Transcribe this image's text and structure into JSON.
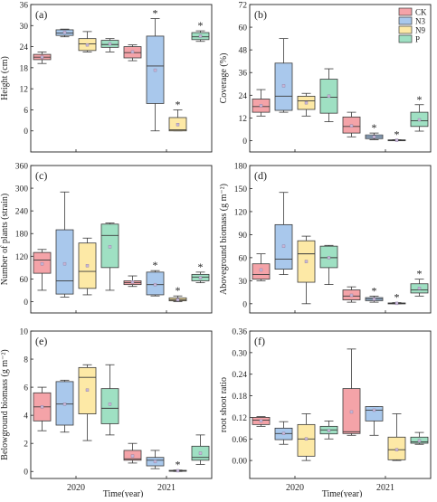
{
  "colors": {
    "CK": "#f4a3a8",
    "N3": "#a9c8ec",
    "N9": "#fde9a6",
    "P": "#9fe0c3",
    "stroke": "#333333",
    "mean": "#c8b8d8"
  },
  "legend": [
    "CK",
    "N3",
    "N9",
    "P"
  ],
  "x_axis": {
    "label": "Time(year)",
    "years": [
      "2020",
      "2021"
    ]
  },
  "chart_data": [
    {
      "type": "box",
      "panel": "(a)",
      "ylabel": "Height (cm)",
      "ylim": [
        -6,
        36
      ],
      "ticks": [
        "0",
        "6",
        "12",
        "18",
        "24",
        "30",
        "36"
      ],
      "tick_values": [
        0,
        6,
        12,
        18,
        24,
        30,
        36
      ],
      "groups": [
        {
          "year": "2020",
          "boxes": [
            {
              "treatment": "CK",
              "min": 19.2,
              "q1": 20.3,
              "median": 21.0,
              "q3": 21.8,
              "max": 22.5,
              "mean": 21.0,
              "sig": ""
            },
            {
              "treatment": "N3",
              "min": 26.8,
              "q1": 27.2,
              "median": 27.9,
              "q3": 28.8,
              "max": 29.0,
              "mean": 28.1,
              "sig": ""
            },
            {
              "treatment": "N9",
              "min": 22.5,
              "q1": 22.9,
              "median": 24.8,
              "q3": 26.3,
              "max": 28.3,
              "mean": 24.5,
              "sig": ""
            },
            {
              "treatment": "P",
              "min": 22.5,
              "q1": 23.8,
              "median": 24.6,
              "q3": 25.8,
              "max": 26.3,
              "mean": 24.8,
              "sig": ""
            }
          ]
        },
        {
          "year": "2021",
          "boxes": [
            {
              "treatment": "CK",
              "min": 20.0,
              "q1": 20.8,
              "median": 22.3,
              "q3": 24.0,
              "max": 24.5,
              "mean": 22.5,
              "sig": ""
            },
            {
              "treatment": "N3",
              "min": 0.0,
              "q1": 7.8,
              "median": 18.5,
              "q3": 27.0,
              "max": 32.0,
              "mean": 17.3,
              "sig": "*"
            },
            {
              "treatment": "N9",
              "min": 0.0,
              "q1": 0.0,
              "median": 0.3,
              "q3": 3.8,
              "max": 6.0,
              "mean": 1.8,
              "sig": "*"
            },
            {
              "treatment": "P",
              "min": 25.5,
              "q1": 26.0,
              "median": 26.8,
              "q3": 28.0,
              "max": 28.5,
              "mean": 27.0,
              "sig": "*"
            }
          ]
        }
      ]
    },
    {
      "type": "box",
      "panel": "(b)",
      "ylabel": "Coverage (%)",
      "ylim": [
        -6,
        72
      ],
      "ticks": [
        "0",
        "12",
        "24",
        "36",
        "48",
        "60",
        "72"
      ],
      "tick_values": [
        0,
        12,
        24,
        36,
        48,
        60,
        72
      ],
      "groups": [
        {
          "year": "2020",
          "boxes": [
            {
              "treatment": "CK",
              "min": 13.0,
              "q1": 15.0,
              "median": 18.0,
              "q3": 22.0,
              "max": 27.0,
              "mean": 18.5,
              "sig": ""
            },
            {
              "treatment": "N3",
              "min": 15.0,
              "q1": 16.0,
              "median": 23.5,
              "q3": 41.0,
              "max": 54.0,
              "mean": 29.0,
              "sig": ""
            },
            {
              "treatment": "N9",
              "min": 13.0,
              "q1": 16.5,
              "median": 21.0,
              "q3": 23.5,
              "max": 25.0,
              "mean": 20.0,
              "sig": ""
            },
            {
              "treatment": "P",
              "min": 10.0,
              "q1": 14.5,
              "median": 23.0,
              "q3": 32.5,
              "max": 38.0,
              "mean": 23.5,
              "sig": ""
            }
          ]
        },
        {
          "year": "2021",
          "boxes": [
            {
              "treatment": "CK",
              "min": 2.0,
              "q1": 4.0,
              "median": 7.5,
              "q3": 12.5,
              "max": 15.0,
              "mean": 7.8,
              "sig": ""
            },
            {
              "treatment": "N3",
              "min": 0.5,
              "q1": 1.0,
              "median": 2.0,
              "q3": 3.0,
              "max": 4.0,
              "mean": 2.0,
              "sig": "*"
            },
            {
              "treatment": "N9",
              "min": 0.0,
              "q1": 0.1,
              "median": 0.2,
              "q3": 0.4,
              "max": 0.5,
              "mean": 0.2,
              "sig": "*"
            },
            {
              "treatment": "P",
              "min": 5.0,
              "q1": 7.5,
              "median": 10.5,
              "q3": 15.0,
              "max": 19.0,
              "mean": 11.0,
              "sig": "*"
            }
          ]
        }
      ]
    },
    {
      "type": "box",
      "panel": "(c)",
      "ylabel": "Number of plants (strain)",
      "ylim": [
        -30,
        360
      ],
      "ticks": [
        "0",
        "60",
        "120",
        "180",
        "240",
        "300",
        "360"
      ],
      "tick_values": [
        0,
        60,
        120,
        180,
        240,
        300,
        360
      ],
      "groups": [
        {
          "year": "2020",
          "boxes": [
            {
              "treatment": "CK",
              "min": 30,
              "q1": 75,
              "median": 110,
              "q3": 130,
              "max": 138,
              "mean": 100,
              "sig": ""
            },
            {
              "treatment": "N3",
              "min": 12,
              "q1": 20,
              "median": 55,
              "q3": 190,
              "max": 290,
              "mean": 100,
              "sig": ""
            },
            {
              "treatment": "N9",
              "min": 18,
              "q1": 35,
              "median": 80,
              "q3": 155,
              "max": 168,
              "mean": 95,
              "sig": ""
            },
            {
              "treatment": "P",
              "min": 30,
              "q1": 90,
              "median": 175,
              "q3": 205,
              "max": 208,
              "mean": 145,
              "sig": ""
            }
          ]
        },
        {
          "year": "2021",
          "boxes": [
            {
              "treatment": "CK",
              "min": 40,
              "q1": 45,
              "median": 50,
              "q3": 55,
              "max": 68,
              "mean": 52,
              "sig": ""
            },
            {
              "treatment": "N3",
              "min": 15,
              "q1": 18,
              "median": 45,
              "q3": 78,
              "max": 82,
              "mean": 45,
              "sig": "*"
            },
            {
              "treatment": "N9",
              "min": 0,
              "q1": 2,
              "median": 5,
              "q3": 10,
              "max": 15,
              "mean": 5,
              "sig": "*"
            },
            {
              "treatment": "P",
              "min": 50,
              "q1": 55,
              "median": 65,
              "q3": 72,
              "max": 78,
              "mean": 63,
              "sig": "*"
            }
          ]
        }
      ]
    },
    {
      "type": "box",
      "panel": "(d)",
      "ylabel": "Aboveground biomass (g m⁻²)",
      "ylim": [
        -12,
        180
      ],
      "ticks": [
        "0",
        "30",
        "60",
        "90",
        "120",
        "150",
        "180"
      ],
      "tick_values": [
        0,
        30,
        60,
        90,
        120,
        150,
        180
      ],
      "groups": [
        {
          "year": "2020",
          "boxes": [
            {
              "treatment": "CK",
              "min": 30,
              "q1": 32,
              "median": 38,
              "q3": 52,
              "max": 65,
              "mean": 44,
              "sig": ""
            },
            {
              "treatment": "N3",
              "min": 38,
              "q1": 45,
              "median": 58,
              "q3": 103,
              "max": 145,
              "mean": 75,
              "sig": ""
            },
            {
              "treatment": "N9",
              "min": 0,
              "q1": 28,
              "median": 65,
              "q3": 82,
              "max": 88,
              "mean": 55,
              "sig": ""
            },
            {
              "treatment": "P",
              "min": 25,
              "q1": 47,
              "median": 60,
              "q3": 75,
              "max": 76,
              "mean": 60,
              "sig": ""
            }
          ]
        },
        {
          "year": "2021",
          "boxes": [
            {
              "treatment": "CK",
              "min": 2,
              "q1": 5,
              "median": 10,
              "q3": 18,
              "max": 22,
              "mean": 11,
              "sig": ""
            },
            {
              "treatment": "N3",
              "min": 2,
              "q1": 4,
              "median": 6,
              "q3": 8,
              "max": 10,
              "mean": 6,
              "sig": "*"
            },
            {
              "treatment": "N9",
              "min": 0,
              "q1": 0.2,
              "median": 0.5,
              "q3": 1,
              "max": 1.5,
              "mean": 0.5,
              "sig": "*"
            },
            {
              "treatment": "P",
              "min": 10,
              "q1": 14,
              "median": 18,
              "q3": 26,
              "max": 32,
              "mean": 20,
              "sig": "*"
            }
          ]
        }
      ]
    },
    {
      "type": "box",
      "panel": "(e)",
      "ylabel": "Belowground biomass (g m⁻²)",
      "ylim": [
        -0.5,
        10
      ],
      "ticks": [
        "0",
        "2",
        "4",
        "6",
        "8",
        "10"
      ],
      "tick_values": [
        0,
        2,
        4,
        6,
        8,
        10
      ],
      "groups": [
        {
          "year": "2020",
          "boxes": [
            {
              "treatment": "CK",
              "min": 2.9,
              "q1": 3.6,
              "median": 4.6,
              "q3": 5.6,
              "max": 6.0,
              "mean": 4.6,
              "sig": ""
            },
            {
              "treatment": "N3",
              "min": 2.8,
              "q1": 3.3,
              "median": 4.8,
              "q3": 6.4,
              "max": 6.5,
              "mean": 4.8,
              "sig": ""
            },
            {
              "treatment": "N9",
              "min": 2.2,
              "q1": 4.1,
              "median": 6.7,
              "q3": 7.4,
              "max": 7.6,
              "mean": 5.8,
              "sig": ""
            },
            {
              "treatment": "P",
              "min": 2.6,
              "q1": 3.4,
              "median": 4.5,
              "q3": 5.9,
              "max": 7.6,
              "mean": 4.8,
              "sig": ""
            }
          ]
        },
        {
          "year": "2021",
          "boxes": [
            {
              "treatment": "CK",
              "min": 0.6,
              "q1": 0.8,
              "median": 0.9,
              "q3": 1.5,
              "max": 2.0,
              "mean": 1.1,
              "sig": ""
            },
            {
              "treatment": "N3",
              "min": 0.2,
              "q1": 0.4,
              "median": 0.8,
              "q3": 1.0,
              "max": 1.5,
              "mean": 0.7,
              "sig": ""
            },
            {
              "treatment": "N9",
              "min": 0.0,
              "q1": 0.02,
              "median": 0.04,
              "q3": 0.08,
              "max": 0.1,
              "mean": 0.05,
              "sig": "*"
            },
            {
              "treatment": "P",
              "min": 0.5,
              "q1": 0.8,
              "median": 1.0,
              "q3": 1.8,
              "max": 2.6,
              "mean": 1.3,
              "sig": ""
            }
          ]
        }
      ]
    },
    {
      "type": "box",
      "panel": "(f)",
      "ylabel": "root shoot ratio",
      "ylim": [
        -0.05,
        0.36
      ],
      "ticks": [
        "0.00",
        "0.06",
        "0.12",
        "0.18",
        "0.24",
        "0.30",
        "0.36"
      ],
      "tick_values": [
        0,
        0.06,
        0.12,
        0.18,
        0.24,
        0.3,
        0.36
      ],
      "groups": [
        {
          "year": "2020",
          "boxes": [
            {
              "treatment": "CK",
              "min": 0.095,
              "q1": 0.1,
              "median": 0.112,
              "q3": 0.12,
              "max": 0.122,
              "mean": 0.11,
              "sig": ""
            },
            {
              "treatment": "N3",
              "min": 0.045,
              "q1": 0.058,
              "median": 0.075,
              "q3": 0.09,
              "max": 0.108,
              "mean": 0.075,
              "sig": ""
            },
            {
              "treatment": "N9",
              "min": 0.0,
              "q1": 0.012,
              "median": 0.06,
              "q3": 0.1,
              "max": 0.13,
              "mean": 0.06,
              "sig": ""
            },
            {
              "treatment": "P",
              "min": 0.06,
              "q1": 0.074,
              "median": 0.085,
              "q3": 0.095,
              "max": 0.11,
              "mean": 0.083,
              "sig": ""
            }
          ]
        },
        {
          "year": "2021",
          "boxes": [
            {
              "treatment": "CK",
              "min": 0.07,
              "q1": 0.075,
              "median": 0.08,
              "q3": 0.2,
              "max": 0.31,
              "mean": 0.135,
              "sig": ""
            },
            {
              "treatment": "N3",
              "min": 0.07,
              "q1": 0.11,
              "median": 0.14,
              "q3": 0.15,
              "max": 0.15,
              "mean": 0.14,
              "sig": ""
            },
            {
              "treatment": "N9",
              "min": 0.0,
              "q1": 0.002,
              "median": 0.03,
              "q3": 0.065,
              "max": 0.13,
              "mean": 0.03,
              "sig": ""
            },
            {
              "treatment": "P",
              "min": 0.045,
              "q1": 0.048,
              "median": 0.052,
              "q3": 0.065,
              "max": 0.078,
              "mean": 0.055,
              "sig": ""
            }
          ]
        }
      ]
    }
  ]
}
